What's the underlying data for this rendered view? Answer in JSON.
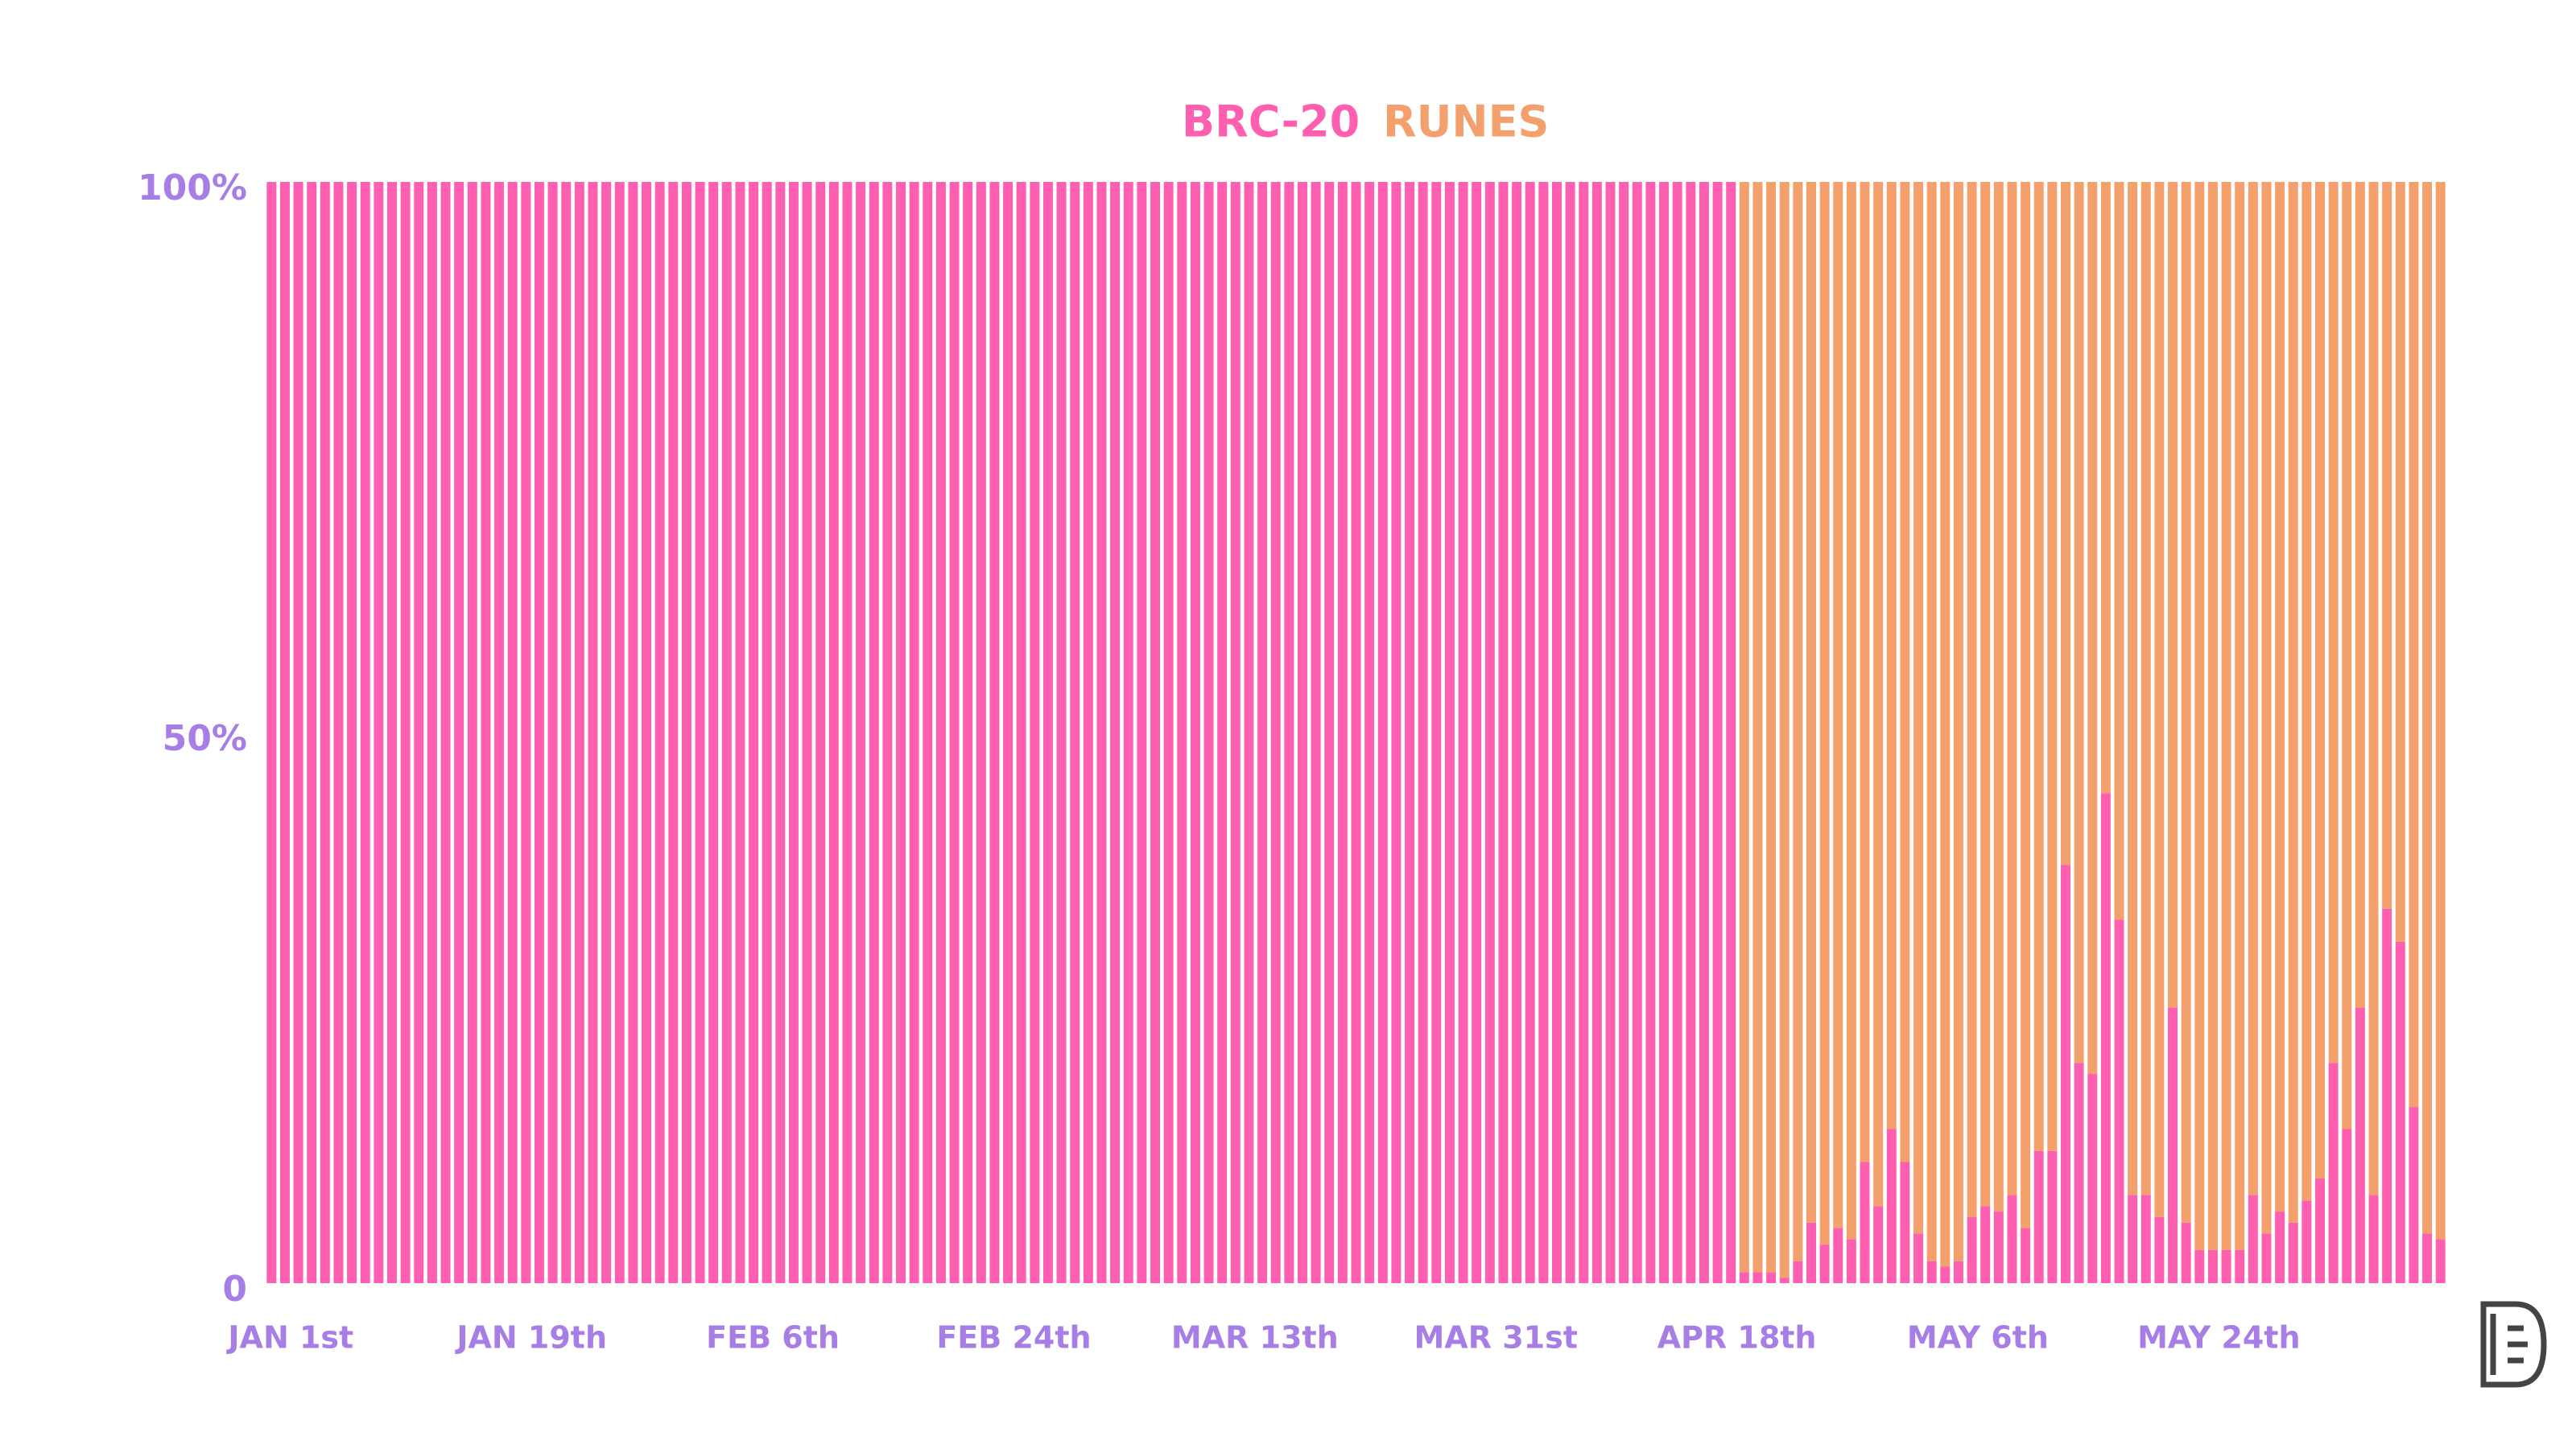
{
  "chart_data": {
    "type": "stacked_bar",
    "categories": [
      "JAN 1st",
      null,
      null,
      null,
      null,
      null,
      null,
      null,
      null,
      null,
      null,
      null,
      null,
      null,
      null,
      null,
      null,
      null,
      "JAN 19th",
      null,
      null,
      null,
      null,
      null,
      null,
      null,
      null,
      null,
      null,
      null,
      null,
      null,
      null,
      null,
      null,
      null,
      "FEB 6th",
      null,
      null,
      null,
      null,
      null,
      null,
      null,
      null,
      null,
      null,
      null,
      null,
      null,
      null,
      null,
      null,
      null,
      "FEB 24th",
      null,
      null,
      null,
      null,
      null,
      null,
      null,
      null,
      null,
      null,
      null,
      null,
      null,
      null,
      null,
      null,
      null,
      "MAR 13th",
      null,
      null,
      null,
      null,
      null,
      null,
      null,
      null,
      null,
      null,
      null,
      null,
      null,
      null,
      null,
      null,
      null,
      "MAR 31st",
      null,
      null,
      null,
      null,
      null,
      null,
      null,
      null,
      null,
      null,
      null,
      null,
      null,
      null,
      null,
      null,
      null,
      "APR 18th",
      null,
      null,
      null,
      null,
      null,
      null,
      null,
      null,
      null,
      null,
      null,
      null,
      null,
      null,
      null,
      null,
      null,
      "MAY 6th",
      null,
      null,
      null,
      null,
      null,
      null,
      null,
      null,
      null,
      null,
      null,
      null,
      null,
      null,
      null,
      null,
      null,
      "MAY 24th",
      null,
      null,
      null,
      null,
      null,
      null,
      null,
      null,
      null,
      null,
      null,
      null,
      null,
      null,
      null,
      null,
      null,
      null
    ],
    "series": [
      {
        "name": "BRC-20",
        "color": "#ff5fb0",
        "values": [
          100,
          100,
          100,
          100,
          100,
          100,
          100,
          100,
          100,
          100,
          100,
          100,
          100,
          100,
          100,
          100,
          100,
          100,
          100,
          100,
          100,
          100,
          100,
          100,
          100,
          100,
          100,
          100,
          100,
          100,
          100,
          100,
          100,
          100,
          100,
          100,
          100,
          100,
          100,
          100,
          100,
          100,
          100,
          100,
          100,
          100,
          100,
          100,
          100,
          100,
          100,
          100,
          100,
          100,
          100,
          100,
          100,
          100,
          100,
          100,
          100,
          100,
          100,
          100,
          100,
          100,
          100,
          100,
          100,
          100,
          100,
          100,
          100,
          100,
          100,
          100,
          100,
          100,
          100,
          100,
          100,
          100,
          100,
          100,
          100,
          100,
          100,
          100,
          100,
          100,
          100,
          100,
          100,
          100,
          100,
          100,
          100,
          100,
          100,
          100,
          100,
          100,
          100,
          100,
          100,
          100,
          100,
          100,
          100,
          100,
          1,
          1,
          1,
          0.5,
          2,
          5.5,
          3.5,
          5,
          4,
          11,
          7,
          14,
          11,
          4.5,
          2,
          1.5,
          2,
          6,
          7,
          6.5,
          8,
          5,
          12,
          12,
          38,
          20,
          19,
          44.5,
          33,
          8,
          8,
          6,
          25,
          5.5,
          3,
          3,
          3,
          3,
          8,
          4.5,
          6.5,
          5.5,
          7.5,
          9.5,
          20,
          14,
          25,
          8,
          34,
          31,
          16,
          4.5,
          4
        ]
      },
      {
        "name": "RUNES",
        "color": "#f4a06c",
        "values": [
          0,
          0,
          0,
          0,
          0,
          0,
          0,
          0,
          0,
          0,
          0,
          0,
          0,
          0,
          0,
          0,
          0,
          0,
          0,
          0,
          0,
          0,
          0,
          0,
          0,
          0,
          0,
          0,
          0,
          0,
          0,
          0,
          0,
          0,
          0,
          0,
          0,
          0,
          0,
          0,
          0,
          0,
          0,
          0,
          0,
          0,
          0,
          0,
          0,
          0,
          0,
          0,
          0,
          0,
          0,
          0,
          0,
          0,
          0,
          0,
          0,
          0,
          0,
          0,
          0,
          0,
          0,
          0,
          0,
          0,
          0,
          0,
          0,
          0,
          0,
          0,
          0,
          0,
          0,
          0,
          0,
          0,
          0,
          0,
          0,
          0,
          0,
          0,
          0,
          0,
          0,
          0,
          0,
          0,
          0,
          0,
          0,
          0,
          0,
          0,
          0,
          0,
          0,
          0,
          0,
          0,
          0,
          0,
          0,
          0,
          99,
          99,
          99,
          99.5,
          98,
          94.5,
          96.5,
          95,
          96,
          89,
          93,
          86,
          89,
          95.5,
          98,
          98.5,
          98,
          94,
          93,
          93.5,
          92,
          95,
          88,
          88,
          62,
          80,
          81,
          55.5,
          67,
          92,
          92,
          94,
          75,
          94.5,
          97,
          97,
          97,
          97,
          92,
          95.5,
          93.5,
          94.5,
          92.5,
          90.5,
          80,
          86,
          75,
          92,
          66,
          69,
          84,
          95.5,
          96
        ]
      }
    ],
    "ylim": [
      0,
      100
    ],
    "yticks": [
      0,
      {
        "value": 50,
        "label": "50%"
      },
      {
        "value": 100,
        "label": "100%"
      }
    ]
  }
}
